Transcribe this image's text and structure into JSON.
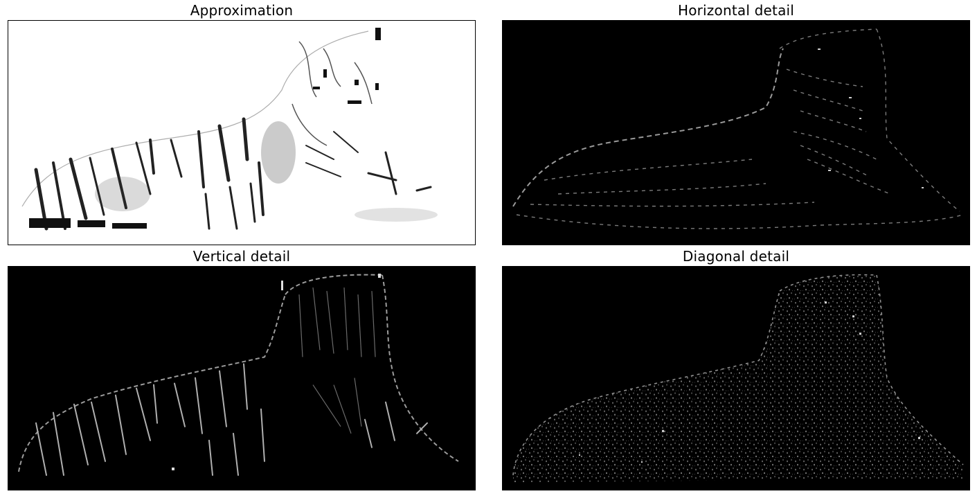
{
  "panels": {
    "approx": {
      "title": "Approximation"
    },
    "horiz": {
      "title": "Horizontal detail"
    },
    "vert": {
      "title": "Vertical detail"
    },
    "diag": {
      "title": "Diagonal detail"
    }
  }
}
